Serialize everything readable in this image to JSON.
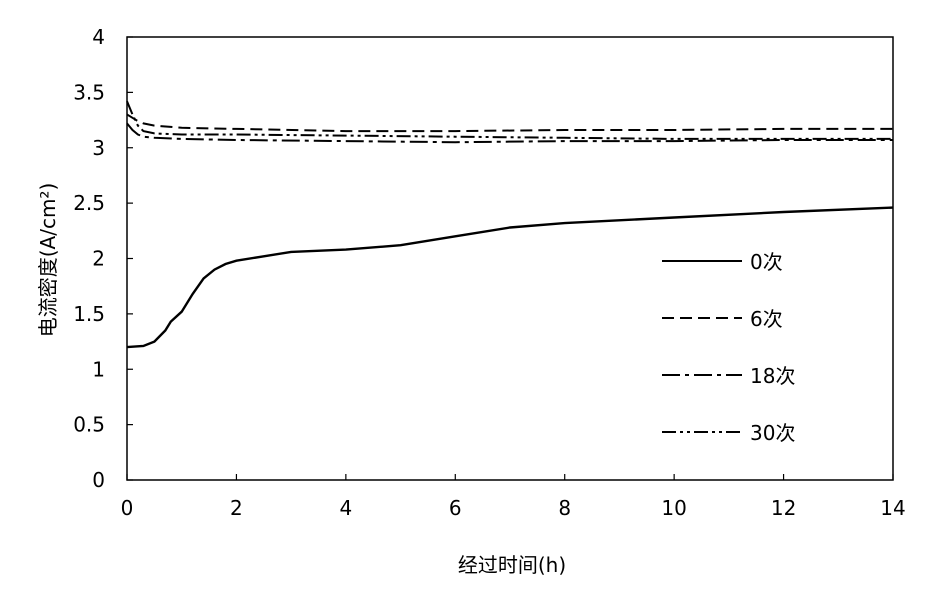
{
  "chart_data": {
    "type": "line",
    "title": "",
    "xlabel": "经过时间(h)",
    "ylabel": "电流密度(A/cm²)",
    "xlim": [
      0,
      14
    ],
    "ylim": [
      0,
      4
    ],
    "x_ticks": [
      "0",
      "2",
      "4",
      "6",
      "8",
      "10",
      "12",
      "14"
    ],
    "y_ticks": [
      "0",
      "0.5",
      "1",
      "1.5",
      "2",
      "2.5",
      "3",
      "3.5",
      "4"
    ],
    "grid": false,
    "legend_position": "right",
    "series": [
      {
        "name": "0次",
        "dash": "solid",
        "x": [
          0,
          0.3,
          0.5,
          0.7,
          0.8,
          1.0,
          1.2,
          1.4,
          1.6,
          1.8,
          2.0,
          2.5,
          3.0,
          4.0,
          5.0,
          6.0,
          7.0,
          8.0,
          10.0,
          12.0,
          14.0
        ],
        "y": [
          1.2,
          1.21,
          1.25,
          1.35,
          1.43,
          1.52,
          1.68,
          1.82,
          1.9,
          1.95,
          1.98,
          2.02,
          2.06,
          2.08,
          2.12,
          2.2,
          2.28,
          2.32,
          2.37,
          2.42,
          2.46
        ]
      },
      {
        "name": "6次",
        "dash": "dashed",
        "x": [
          0,
          0.1,
          0.2,
          0.3,
          0.5,
          1.0,
          2.0,
          4.0,
          6.0,
          8.0,
          10.0,
          12.0,
          14.0
        ],
        "y": [
          3.3,
          3.27,
          3.24,
          3.22,
          3.2,
          3.18,
          3.17,
          3.15,
          3.15,
          3.16,
          3.16,
          3.17,
          3.17
        ]
      },
      {
        "name": "18次",
        "dash": "dash-dot",
        "x": [
          0,
          0.1,
          0.2,
          0.3,
          0.5,
          1.0,
          2.0,
          4.0,
          6.0,
          8.0,
          10.0,
          12.0,
          14.0
        ],
        "y": [
          3.22,
          3.16,
          3.12,
          3.1,
          3.09,
          3.08,
          3.07,
          3.06,
          3.05,
          3.06,
          3.06,
          3.07,
          3.07
        ]
      },
      {
        "name": "30次",
        "dash": "dash-dot-dot",
        "x": [
          0,
          0.1,
          0.2,
          0.3,
          0.5,
          1.0,
          2.0,
          4.0,
          6.0,
          8.0,
          10.0,
          12.0,
          14.0
        ],
        "y": [
          3.42,
          3.3,
          3.2,
          3.15,
          3.13,
          3.12,
          3.12,
          3.11,
          3.1,
          3.09,
          3.08,
          3.08,
          3.08
        ]
      }
    ],
    "line_color": "#000000"
  }
}
